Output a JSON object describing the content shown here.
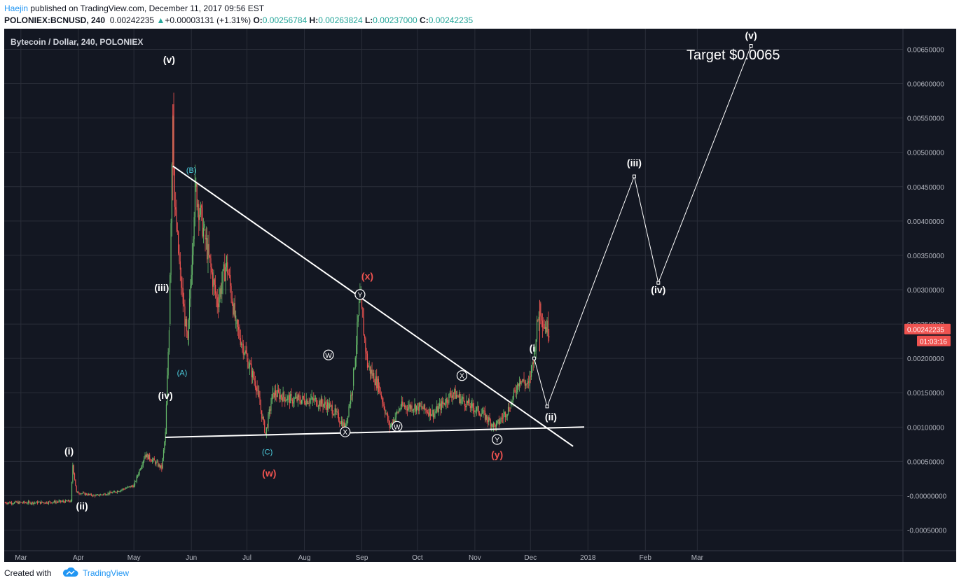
{
  "header": {
    "author": "Haejin",
    "published_text": " published on TradingView.com, December 11, 2017 09:56 EST",
    "symbol": "POLONIEX:BCNUSD, 240",
    "last": "0.00242235",
    "change_arrow": "▲",
    "change": "+0.00003131 (+1.31%)",
    "o_label": "O:",
    "o": "0.00256784",
    "h_label": "H:",
    "h": "0.00263824",
    "l_label": "L:",
    "l": "0.00237000",
    "c_label": "C:",
    "c": "0.00242235"
  },
  "footer": {
    "created_with": "Created with",
    "brand": "TradingView",
    "logo_icon": "tradingview-cloud-icon"
  },
  "colors": {
    "background": "#131722",
    "grid": "#2a2e39",
    "text": "#b2b5be",
    "price_tag": "#ef5350",
    "up_candle": "#66bb6a",
    "down_candle": "#ef5350",
    "wave_white": "#ffffff",
    "wave_cyan": "#4dd0e1",
    "wave_red": "#ef5350"
  },
  "chart_data": {
    "type": "line",
    "title": "Bytecoin / Dollar, 240, POLONIEX",
    "ylim": [
      -0.0008,
      0.0068
    ],
    "y_ticks": [
      "0.00650000",
      "0.00600000",
      "0.00550000",
      "0.00500000",
      "0.00450000",
      "0.00400000",
      "0.00350000",
      "0.00300000",
      "0.00250000",
      "0.00200000",
      "0.00150000",
      "0.00100000",
      "0.00050000",
      "-0.00000000",
      "-0.00050000"
    ],
    "y_tick_values": [
      0.0065,
      0.006,
      0.0055,
      0.005,
      0.0045,
      0.004,
      0.0035,
      0.003,
      0.0025,
      0.002,
      0.0015,
      0.001,
      0.0005,
      0,
      -0.0005
    ],
    "x_ticks": [
      "Mar",
      "Apr",
      "May",
      "Jun",
      "Jul",
      "Aug",
      "Sep",
      "Oct",
      "Nov",
      "Dec",
      "2018",
      "Feb",
      "Mar"
    ],
    "x_tick_dates": [
      "2017-03-01",
      "2017-04-01",
      "2017-05-01",
      "2017-06-01",
      "2017-07-01",
      "2017-08-01",
      "2017-09-01",
      "2017-10-01",
      "2017-11-01",
      "2017-12-01",
      "2018-01-01",
      "2018-02-01",
      "2018-03-01"
    ],
    "xlim": [
      "2017-02-20",
      "2018-06-20"
    ],
    "last_price_tag": "0.00242235",
    "countdown": "01:03:16",
    "target_text": "Target $0.0065",
    "series": [
      {
        "style": "price-line",
        "points": [
          [
            "2017-02-20",
            -0.0001
          ],
          [
            "2017-03-10",
            -0.0001
          ],
          [
            "2017-03-28",
            -8e-05
          ],
          [
            "2017-03-29",
            0.00045
          ],
          [
            "2017-03-31",
            5e-05
          ],
          [
            "2017-04-10",
            0.0
          ],
          [
            "2017-04-20",
            5e-05
          ],
          [
            "2017-05-01",
            0.00015
          ],
          [
            "2017-05-07",
            0.0006
          ],
          [
            "2017-05-12",
            0.0005
          ],
          [
            "2017-05-16",
            0.0004
          ],
          [
            "2017-05-18",
            0.0009
          ],
          [
            "2017-05-20",
            0.0025
          ],
          [
            "2017-05-22",
            0.0057
          ],
          [
            "2017-05-23",
            0.0042
          ],
          [
            "2017-05-26",
            0.0032
          ],
          [
            "2017-05-30",
            0.0022
          ],
          [
            "2017-06-03",
            0.0045
          ],
          [
            "2017-06-08",
            0.0038
          ],
          [
            "2017-06-15",
            0.0028
          ],
          [
            "2017-06-20",
            0.0034
          ],
          [
            "2017-06-25",
            0.0025
          ],
          [
            "2017-07-01",
            0.002
          ],
          [
            "2017-07-06",
            0.0016
          ],
          [
            "2017-07-11",
            0.0009
          ],
          [
            "2017-07-15",
            0.0015
          ],
          [
            "2017-07-25",
            0.0014
          ],
          [
            "2017-08-05",
            0.0014
          ],
          [
            "2017-08-15",
            0.0013
          ],
          [
            "2017-08-23",
            0.001
          ],
          [
            "2017-08-27",
            0.0016
          ],
          [
            "2017-08-31",
            0.0029
          ],
          [
            "2017-09-04",
            0.0019
          ],
          [
            "2017-09-10",
            0.0016
          ],
          [
            "2017-09-16",
            0.001
          ],
          [
            "2017-09-22",
            0.0013
          ],
          [
            "2017-10-01",
            0.0013
          ],
          [
            "2017-10-10",
            0.0012
          ],
          [
            "2017-10-20",
            0.0015
          ],
          [
            "2017-10-30",
            0.0013
          ],
          [
            "2017-11-05",
            0.0012
          ],
          [
            "2017-11-12",
            0.001
          ],
          [
            "2017-11-20",
            0.0013
          ],
          [
            "2017-11-25",
            0.0017
          ],
          [
            "2017-11-30",
            0.0016
          ],
          [
            "2017-12-03",
            0.0021
          ],
          [
            "2017-12-06",
            0.0028
          ],
          [
            "2017-12-08",
            0.0025
          ],
          [
            "2017-12-11",
            0.00242
          ]
        ]
      },
      {
        "style": "projection",
        "points": [
          [
            "2017-12-03",
            0.002
          ],
          [
            "2017-12-10",
            0.0013
          ],
          [
            "2018-01-26",
            0.00465
          ],
          [
            "2018-02-08",
            0.0031
          ],
          [
            "2018-03-30",
            0.00655
          ]
        ]
      },
      {
        "style": "trendline-upper",
        "points": [
          [
            "2017-05-22",
            0.0048
          ],
          [
            "2017-12-24",
            0.00072
          ]
        ]
      },
      {
        "style": "trendline-lower",
        "points": [
          [
            "2017-05-18",
            0.00085
          ],
          [
            "2017-12-30",
            0.001
          ]
        ]
      }
    ],
    "annotations": [
      {
        "text": "(v)",
        "x": "2017-05-20",
        "y": 0.0063,
        "color": "white",
        "bold": true
      },
      {
        "text": "(iii)",
        "x": "2017-05-16",
        "y": 0.00298,
        "color": "white",
        "bold": true
      },
      {
        "text": "(iv)",
        "x": "2017-05-18",
        "y": 0.00141,
        "color": "white",
        "bold": true
      },
      {
        "text": "(i)",
        "x": "2017-03-27",
        "y": 0.0006,
        "color": "white",
        "bold": true
      },
      {
        "text": "(ii)",
        "x": "2017-04-03",
        "y": -0.0002,
        "color": "white",
        "bold": true
      },
      {
        "text": "(B)",
        "x": "2017-06-01",
        "y": 0.0047,
        "color": "cyan",
        "bold": false
      },
      {
        "text": "(A)",
        "x": "2017-05-27",
        "y": 0.00175,
        "color": "cyan",
        "bold": false
      },
      {
        "text": "(C)",
        "x": "2017-07-12",
        "y": 0.0006,
        "color": "cyan",
        "bold": false
      },
      {
        "text": "(w)",
        "x": "2017-07-13",
        "y": 0.00028,
        "color": "red",
        "bold": true
      },
      {
        "text": "(x)",
        "x": "2017-09-04",
        "y": 0.00315,
        "color": "red",
        "bold": true
      },
      {
        "text": "(y)",
        "x": "2017-11-13",
        "y": 0.00055,
        "color": "red",
        "bold": true
      },
      {
        "text": "(iii)",
        "x": "2018-01-26",
        "y": 0.0048,
        "color": "white",
        "bold": true
      },
      {
        "text": "(iv)",
        "x": "2018-02-08",
        "y": 0.00295,
        "color": "white",
        "bold": true
      },
      {
        "text": "(v)",
        "x": "2018-03-30",
        "y": 0.00665,
        "color": "white",
        "bold": true
      },
      {
        "text": "(ii)",
        "x": "2017-12-12",
        "y": 0.0011,
        "color": "white",
        "bold": true
      },
      {
        "text": "(i",
        "x": "2017-12-02",
        "y": 0.0021,
        "color": "white",
        "bold": true
      }
    ],
    "circled_labels": [
      {
        "text": "Y",
        "x": "2017-08-31",
        "y": 0.00293
      },
      {
        "text": "W",
        "x": "2017-08-14",
        "y": 0.00205
      },
      {
        "text": "X",
        "x": "2017-08-23",
        "y": 0.00093
      },
      {
        "text": "W",
        "x": "2017-09-20",
        "y": 0.00101
      },
      {
        "text": "X",
        "x": "2017-10-25",
        "y": 0.00175
      },
      {
        "text": "Y",
        "x": "2017-11-13",
        "y": 0.00082
      }
    ]
  }
}
